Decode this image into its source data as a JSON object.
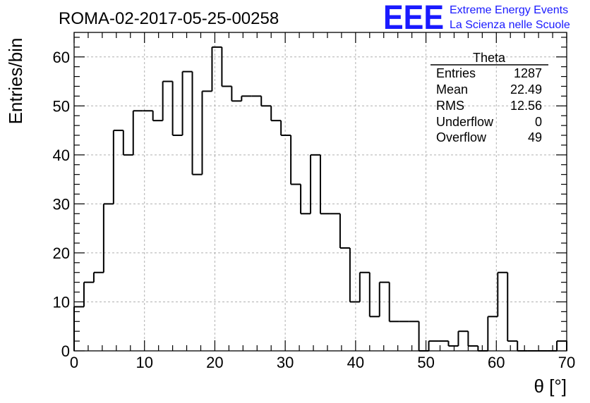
{
  "header": {
    "run_title": "ROMA-02-2017-05-25-00258",
    "logo": "EEE",
    "org_line1": "Extreme Energy Events",
    "org_line2": "La Scienza nelle Scuole",
    "logo_color": "#1a1aff"
  },
  "stats_box": {
    "title": "Theta",
    "rows": [
      {
        "label": "Entries",
        "value": "1287"
      },
      {
        "label": "Mean",
        "value": "22.49"
      },
      {
        "label": "RMS",
        "value": "12.56"
      },
      {
        "label": "Underflow",
        "value": "0"
      },
      {
        "label": "Overflow",
        "value": "49"
      }
    ]
  },
  "chart_data": {
    "type": "bar",
    "histogram": true,
    "bin_width": 1.4,
    "x_start": 0,
    "values": [
      9,
      14,
      16,
      30,
      45,
      40,
      49,
      49,
      47,
      55,
      44,
      57,
      36,
      53,
      62,
      54,
      51,
      52,
      52,
      50,
      47,
      44,
      34,
      28,
      40,
      28,
      28,
      21,
      10,
      16,
      7,
      14,
      6,
      6,
      6,
      0,
      2,
      2,
      1,
      4,
      1,
      0,
      7,
      16,
      2,
      0,
      0,
      0,
      0,
      2
    ],
    "xlabel": "θ [°]",
    "ylabel": "Entries/bin",
    "xlim": [
      0,
      70
    ],
    "ylim": [
      0,
      65
    ],
    "xticks": [
      0,
      10,
      20,
      30,
      40,
      50,
      60,
      70
    ],
    "yticks": [
      0,
      10,
      20,
      30,
      40,
      50,
      60
    ],
    "grid": true,
    "line_color": "#000000"
  }
}
